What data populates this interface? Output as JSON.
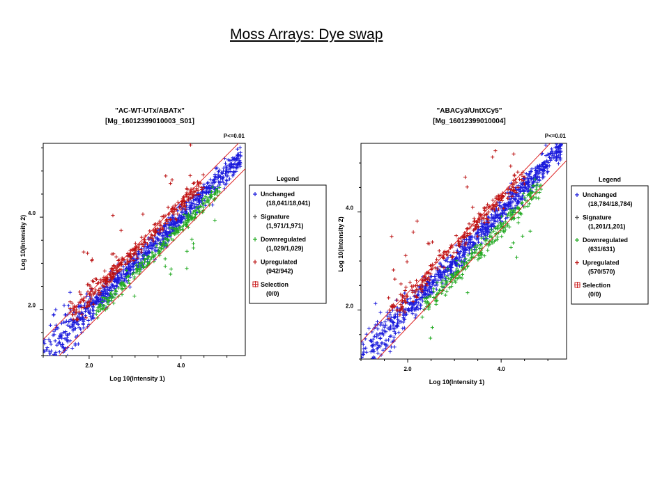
{
  "page": {
    "title": "Moss Arrays: Dye swap"
  },
  "chart_data": [
    {
      "type": "scatter",
      "title_line1": "\"AC-WT-UTx/ABATx\"",
      "title_line2": "[Mg_16012399010003_S01]",
      "threshold_label": "P<=0.01",
      "xlabel": "Log 10(Intensity 1)",
      "ylabel": "Log 10(Intensity 2)",
      "xlim": [
        1.0,
        5.4
      ],
      "ylim": [
        1.0,
        5.6
      ],
      "x_ticks": [
        "2.0",
        "4.0"
      ],
      "x_tick_values": [
        2.0,
        4.0
      ],
      "y_ticks": [
        "2.0",
        "4.0"
      ],
      "y_tick_values": [
        2.0,
        4.0
      ],
      "threshold_offset": 0.35,
      "legend": {
        "title": "Legend",
        "items": [
          {
            "name": "Unchanged",
            "count": "(18,041/18,041)",
            "color": "#1a1adc",
            "symbol": "+"
          },
          {
            "name": "Signature",
            "count": "(1,971/1,971)",
            "color": "#555555",
            "symbol": "+"
          },
          {
            "name": "Downregulated",
            "count": "(1,029/1,029)",
            "color": "#22aa22",
            "symbol": "+"
          },
          {
            "name": "Upregulated",
            "count": "(942/942)",
            "color": "#bb1111",
            "symbol": "+"
          },
          {
            "name": "Selection",
            "count": "(0/0)",
            "color": "#cc2222",
            "symbol": "box"
          }
        ]
      },
      "series": [
        {
          "name": "Unchanged",
          "color": "#1a1adc",
          "n": 900,
          "spread": 0.12,
          "shift": 0.0,
          "xmin": 1.0,
          "xmax": 5.3,
          "density": "low"
        },
        {
          "name": "Upregulated",
          "color": "#bb1111",
          "n": 320,
          "spread": 0.1,
          "shift": 0.28,
          "xmin": 1.0,
          "xmax": 4.9,
          "density": "mid"
        },
        {
          "name": "Downregulated",
          "color": "#22aa22",
          "n": 260,
          "spread": 0.08,
          "shift": -0.22,
          "xmin": 1.6,
          "xmax": 5.2,
          "density": "mid"
        }
      ]
    },
    {
      "type": "scatter",
      "title_line1": "\"ABACy3/UntXCy5\"",
      "title_line2": "[Mg_16012399010004]",
      "threshold_label": "P<=0.01",
      "xlabel": "Log 10(Intensity 1)",
      "ylabel": "Log 10(Intensity 2)",
      "xlim": [
        1.0,
        5.4
      ],
      "ylim": [
        1.0,
        5.4
      ],
      "x_ticks": [
        "2.0",
        "4.0"
      ],
      "x_tick_values": [
        2.0,
        4.0
      ],
      "y_ticks": [
        "2.0",
        "4.0"
      ],
      "y_tick_values": [
        2.0,
        4.0
      ],
      "threshold_offset": 0.35,
      "legend": {
        "title": "Legend",
        "items": [
          {
            "name": "Unchanged",
            "count": "(18,784/18,784)",
            "color": "#1a1adc",
            "symbol": "+"
          },
          {
            "name": "Signature",
            "count": "(1,201/1,201)",
            "color": "#555555",
            "symbol": "+"
          },
          {
            "name": "Downregulated",
            "count": "(631/631)",
            "color": "#22aa22",
            "symbol": "+"
          },
          {
            "name": "Upregulated",
            "count": "(570/570)",
            "color": "#bb1111",
            "symbol": "+"
          },
          {
            "name": "Selection",
            "count": "(0/0)",
            "color": "#cc2222",
            "symbol": "box"
          }
        ]
      },
      "series": [
        {
          "name": "Unchanged",
          "color": "#1a1adc",
          "n": 900,
          "spread": 0.12,
          "shift": 0.0,
          "xmin": 1.0,
          "xmax": 5.3,
          "density": "low"
        },
        {
          "name": "Upregulated",
          "color": "#bb1111",
          "n": 260,
          "spread": 0.1,
          "shift": 0.28,
          "xmin": 1.0,
          "xmax": 4.9,
          "density": "mid"
        },
        {
          "name": "Downregulated",
          "color": "#22aa22",
          "n": 260,
          "spread": 0.1,
          "shift": -0.3,
          "xmin": 1.8,
          "xmax": 5.2,
          "density": "mid"
        }
      ]
    }
  ]
}
